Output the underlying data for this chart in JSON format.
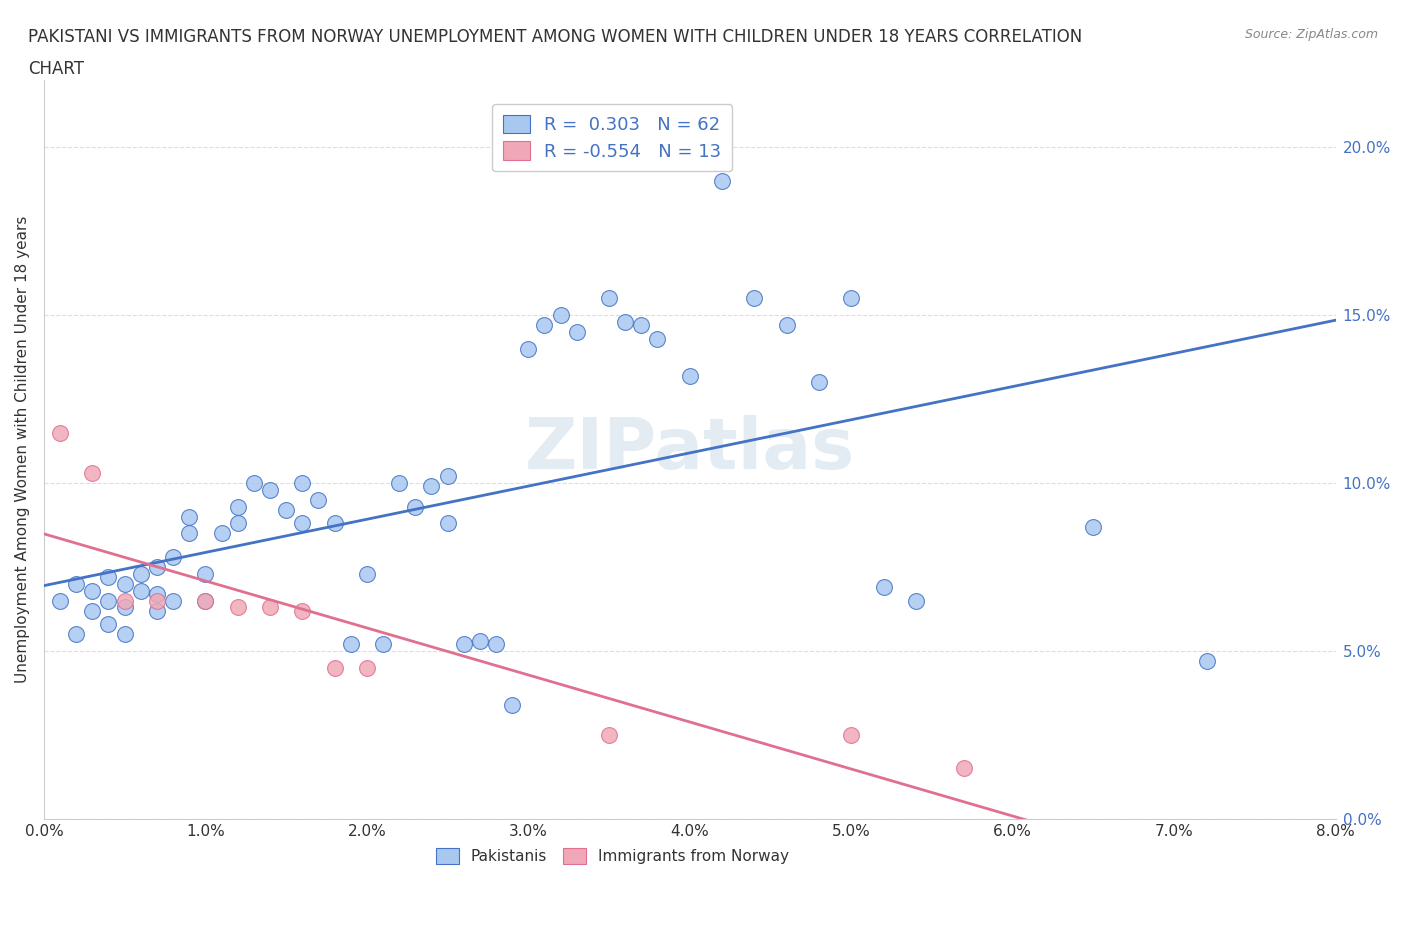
{
  "title_line1": "PAKISTANI VS IMMIGRANTS FROM NORWAY UNEMPLOYMENT AMONG WOMEN WITH CHILDREN UNDER 18 YEARS CORRELATION",
  "title_line2": "CHART",
  "source": "Source: ZipAtlas.com",
  "ylabel": "Unemployment Among Women with Children Under 18 years",
  "xlim": [
    0.0,
    0.08
  ],
  "ylim": [
    0.0,
    0.22
  ],
  "xticks": [
    0.0,
    0.01,
    0.02,
    0.03,
    0.04,
    0.05,
    0.06,
    0.07,
    0.08
  ],
  "yticks": [
    0.0,
    0.05,
    0.1,
    0.15,
    0.2
  ],
  "blue_R": "0.303",
  "blue_N": "62",
  "pink_R": "-0.554",
  "pink_N": "13",
  "blue_color": "#a8c8f0",
  "pink_color": "#f0a8b8",
  "blue_line_color": "#4472c4",
  "pink_line_color": "#e07090",
  "watermark": "ZIPatlas",
  "legend_label_blue": "Pakistanis",
  "legend_label_pink": "Immigrants from Norway",
  "blue_scatter_x": [
    0.001,
    0.002,
    0.002,
    0.003,
    0.003,
    0.004,
    0.004,
    0.004,
    0.005,
    0.005,
    0.005,
    0.006,
    0.006,
    0.007,
    0.007,
    0.007,
    0.008,
    0.008,
    0.009,
    0.009,
    0.01,
    0.01,
    0.011,
    0.012,
    0.012,
    0.013,
    0.014,
    0.015,
    0.016,
    0.016,
    0.017,
    0.018,
    0.019,
    0.02,
    0.021,
    0.022,
    0.023,
    0.024,
    0.025,
    0.025,
    0.026,
    0.027,
    0.028,
    0.029,
    0.03,
    0.031,
    0.032,
    0.033,
    0.035,
    0.036,
    0.037,
    0.038,
    0.04,
    0.042,
    0.044,
    0.046,
    0.048,
    0.05,
    0.052,
    0.054,
    0.065,
    0.072
  ],
  "blue_scatter_y": [
    0.065,
    0.07,
    0.055,
    0.068,
    0.062,
    0.072,
    0.065,
    0.058,
    0.07,
    0.063,
    0.055,
    0.068,
    0.073,
    0.075,
    0.067,
    0.062,
    0.078,
    0.065,
    0.085,
    0.09,
    0.073,
    0.065,
    0.085,
    0.093,
    0.088,
    0.1,
    0.098,
    0.092,
    0.1,
    0.088,
    0.095,
    0.088,
    0.052,
    0.073,
    0.052,
    0.1,
    0.093,
    0.099,
    0.102,
    0.088,
    0.052,
    0.053,
    0.052,
    0.034,
    0.14,
    0.147,
    0.15,
    0.145,
    0.155,
    0.148,
    0.147,
    0.143,
    0.132,
    0.19,
    0.155,
    0.147,
    0.13,
    0.155,
    0.069,
    0.065,
    0.087,
    0.047
  ],
  "pink_scatter_x": [
    0.001,
    0.003,
    0.005,
    0.007,
    0.01,
    0.012,
    0.014,
    0.016,
    0.018,
    0.02,
    0.035,
    0.05,
    0.057
  ],
  "pink_scatter_y": [
    0.115,
    0.103,
    0.065,
    0.065,
    0.065,
    0.063,
    0.063,
    0.062,
    0.045,
    0.045,
    0.025,
    0.025,
    0.015
  ],
  "background_color": "#ffffff",
  "plot_bg_color": "#ffffff",
  "grid_color": "#dddddd"
}
